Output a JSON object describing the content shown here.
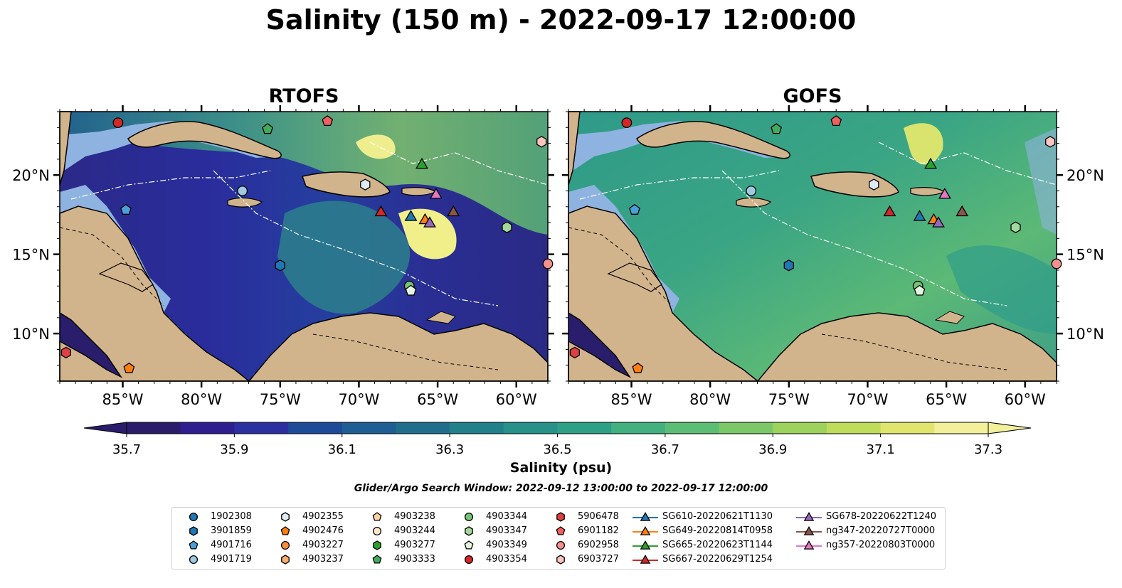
{
  "title": "Salinity (150 m) - 2022-09-17 12:00:00",
  "panels": [
    {
      "title": "RTOFS",
      "lat_labels": [
        "20°N",
        "15°N",
        "10°N"
      ],
      "lon_labels": [
        "85°W",
        "80°W",
        "75°W",
        "70°W",
        "65°W",
        "60°W"
      ]
    },
    {
      "title": "GOFS",
      "lat_labels": [
        "20°N",
        "15°N",
        "10°N"
      ],
      "lon_labels": [
        "85°W",
        "80°W",
        "75°W",
        "70°W",
        "65°W",
        "60°W"
      ]
    }
  ],
  "map_extent": {
    "lon": [
      -89,
      -58
    ],
    "lat": [
      7,
      24
    ]
  },
  "colorbar": {
    "label": "Salinity (psu)",
    "ticks": [
      "35.7",
      "35.9",
      "36.1",
      "36.3",
      "36.5",
      "36.7",
      "36.9",
      "37.1",
      "37.3"
    ],
    "colors": [
      "#2a1c6b",
      "#2e1e8f",
      "#2c2fa0",
      "#1d4b9a",
      "#1e5e94",
      "#1f6f8c",
      "#22808b",
      "#27918a",
      "#2ea086",
      "#42b07f",
      "#5cbd75",
      "#7cc868",
      "#9dd35c",
      "#bfdc5a",
      "#e0e56e",
      "#f2f09a"
    ]
  },
  "search_window": "Glider/Argo Search Window: 2022-09-12 13:00:00 to 2022-09-17 12:00:00",
  "legend": [
    {
      "label": "1902308",
      "marker": "circle",
      "color": "#1f77b4"
    },
    {
      "label": "3901859",
      "marker": "hexagon",
      "color": "#1f77b4"
    },
    {
      "label": "4901716",
      "marker": "pentagon",
      "color": "#4a9fd8"
    },
    {
      "label": "4901719",
      "marker": "circle",
      "color": "#9ecae1"
    },
    {
      "label": "4902355",
      "marker": "hexagon",
      "color": "#deebf7"
    },
    {
      "label": "4902476",
      "marker": "pentagon",
      "color": "#ff7f0e"
    },
    {
      "label": "4903227",
      "marker": "circle",
      "color": "#fd8d3c"
    },
    {
      "label": "4903237",
      "marker": "hexagon",
      "color": "#fdae6b"
    },
    {
      "label": "4903238",
      "marker": "pentagon",
      "color": "#fdd0a2"
    },
    {
      "label": "4903244",
      "marker": "circle",
      "color": "#fee6ce"
    },
    {
      "label": "4903277",
      "marker": "hexagon",
      "color": "#2ca02c"
    },
    {
      "label": "4903333",
      "marker": "pentagon",
      "color": "#41ab5d"
    },
    {
      "label": "4903344",
      "marker": "circle",
      "color": "#74c476"
    },
    {
      "label": "4903347",
      "marker": "hexagon",
      "color": "#a1d99b"
    },
    {
      "label": "4903349",
      "marker": "pentagon",
      "color": "#e5f5e0"
    },
    {
      "label": "4903354",
      "marker": "circle",
      "color": "#d62728"
    },
    {
      "label": "5906478",
      "marker": "hexagon",
      "color": "#de3f3f"
    },
    {
      "label": "6901182",
      "marker": "pentagon",
      "color": "#f06060"
    },
    {
      "label": "6902958",
      "marker": "circle",
      "color": "#f4908e"
    },
    {
      "label": "6903727",
      "marker": "hexagon",
      "color": "#fcc5c0"
    },
    {
      "label": "SG610-20220621T1130",
      "marker": "triangle",
      "color": "#1f77b4"
    },
    {
      "label": "SG649-20220814T0958",
      "marker": "triangle",
      "color": "#ff7f0e"
    },
    {
      "label": "SG665-20220623T1144",
      "marker": "triangle",
      "color": "#2ca02c"
    },
    {
      "label": "SG667-20220629T1254",
      "marker": "triangle",
      "color": "#d62728"
    },
    {
      "label": "SG678-20220622T1240",
      "marker": "triangle",
      "color": "#9467bd"
    },
    {
      "label": "ng347-20220727T0000",
      "marker": "triangle",
      "color": "#8c564b"
    },
    {
      "label": "ng357-20220803T0000",
      "marker": "triangle",
      "color": "#e377c2"
    }
  ],
  "observations": [
    {
      "id": "4903354",
      "lon": -85.3,
      "lat": 23.3
    },
    {
      "id": "6901182",
      "lon": -72.0,
      "lat": 23.4
    },
    {
      "id": "4903333",
      "lon": -75.8,
      "lat": 22.9
    },
    {
      "id": "6903727",
      "lon": -58.4,
      "lat": 22.1
    },
    {
      "id": "SG665-20220623T1144",
      "lon": -66.0,
      "lat": 20.7
    },
    {
      "id": "4901719",
      "lon": -77.4,
      "lat": 19.0
    },
    {
      "id": "4902355",
      "lon": -69.6,
      "lat": 19.4
    },
    {
      "id": "4901716",
      "lon": -84.8,
      "lat": 17.8
    },
    {
      "id": "ng357-20220803T0000",
      "lon": -65.1,
      "lat": 18.8
    },
    {
      "id": "SG667-20220629T1254",
      "lon": -68.6,
      "lat": 17.7
    },
    {
      "id": "SG610-20220621T1130",
      "lon": -66.7,
      "lat": 17.4
    },
    {
      "id": "SG649-20220814T0958",
      "lon": -65.8,
      "lat": 17.2
    },
    {
      "id": "SG678-20220622T1240",
      "lon": -65.5,
      "lat": 17.0
    },
    {
      "id": "ng347-20220727T0000",
      "lon": -64.0,
      "lat": 17.7
    },
    {
      "id": "4903347",
      "lon": -60.6,
      "lat": 16.7
    },
    {
      "id": "6902958",
      "lon": -58.0,
      "lat": 14.4
    },
    {
      "id": "3901859",
      "lon": -75.0,
      "lat": 14.3
    },
    {
      "id": "4903344",
      "lon": -66.8,
      "lat": 13.0
    },
    {
      "id": "4903349",
      "lon": -66.7,
      "lat": 12.7
    },
    {
      "id": "5906478",
      "lon": -88.6,
      "lat": 8.8
    },
    {
      "id": "4902476",
      "lon": -84.6,
      "lat": 7.8
    }
  ]
}
